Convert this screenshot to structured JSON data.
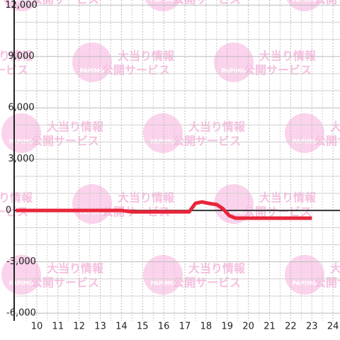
{
  "chart_data": {
    "type": "line",
    "x": [
      9,
      14,
      14.5,
      17.2,
      17.5,
      17.8,
      18.2,
      18.5,
      18.8,
      19.1,
      19.4,
      23
    ],
    "series": [
      {
        "color": "#e8253a",
        "values": [
          0,
          0,
          -80,
          -80,
          420,
          500,
          400,
          350,
          100,
          -300,
          -450,
          -450
        ]
      }
    ],
    "xlim": [
      8.93,
      24.33
    ],
    "xticks": [
      10,
      11,
      12,
      13,
      14,
      15,
      16,
      17,
      18,
      19,
      20,
      21,
      22,
      23,
      24
    ],
    "x_minor_ticks": [
      9.5,
      10.5,
      11.5,
      12.5,
      13.5,
      14.5,
      15.5,
      16.5,
      17.5,
      18.5,
      19.5,
      20.5,
      21.5,
      22.5,
      23.5
    ],
    "ylim": [
      -6450,
      12300
    ],
    "yticks": [
      {
        "value": 12000,
        "label": "12,000"
      },
      {
        "value": 9000,
        "label": "9,000"
      },
      {
        "value": 6000,
        "label": "6,000"
      },
      {
        "value": 3000,
        "label": "3,000"
      },
      0,
      {
        "value": -3000,
        "label": "-3,000"
      },
      {
        "value": -6000,
        "label": "-6,000"
      }
    ],
    "y_minor_ticks": [
      11000,
      10000,
      8000,
      7000,
      5000,
      4000,
      2000,
      1000,
      -1000,
      -2000,
      -4000,
      -5000
    ],
    "grid": true
  },
  "watermark": {
    "brand": "PAPIMO",
    "line1": "大当り情報",
    "line2": "公開サービス"
  }
}
